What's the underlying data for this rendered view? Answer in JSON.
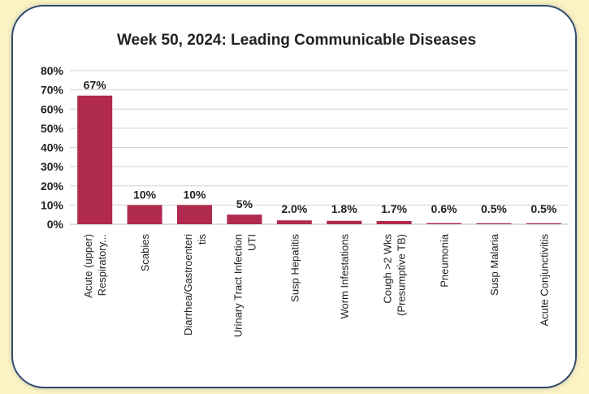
{
  "chart_data": {
    "type": "bar",
    "title": "Week 50, 2024: Leading Communicable Diseases",
    "categories": [
      [
        "Acute (upper)",
        "Respiratory..."
      ],
      [
        "Scabies"
      ],
      [
        "Diarrhea/Gastroenteri",
        "tis"
      ],
      [
        "Urinary Tract Infection",
        "UTI"
      ],
      [
        "Susp Hepatitis"
      ],
      [
        "Worm Infestations"
      ],
      [
        "Cough >2 Wks",
        "(Presumptive TB)"
      ],
      [
        "Pneumonia"
      ],
      [
        "Susp Malaria"
      ],
      [
        "Acute Conjunctivitis"
      ]
    ],
    "values": [
      67,
      10,
      10,
      5,
      2.0,
      1.8,
      1.7,
      0.6,
      0.5,
      0.5
    ],
    "data_labels": [
      "67%",
      "10%",
      "10%",
      "5%",
      "2.0%",
      "1.8%",
      "1.7%",
      "0.6%",
      "0.5%",
      "0.5%"
    ],
    "y_ticks": [
      "0%",
      "10%",
      "20%",
      "30%",
      "40%",
      "50%",
      "60%",
      "70%",
      "80%"
    ],
    "ylim": [
      0,
      80
    ],
    "grid": true,
    "bar_color": "#b02a4f",
    "background_color": "#fbf3c4",
    "frame_border_color": "#2f4a6b"
  }
}
